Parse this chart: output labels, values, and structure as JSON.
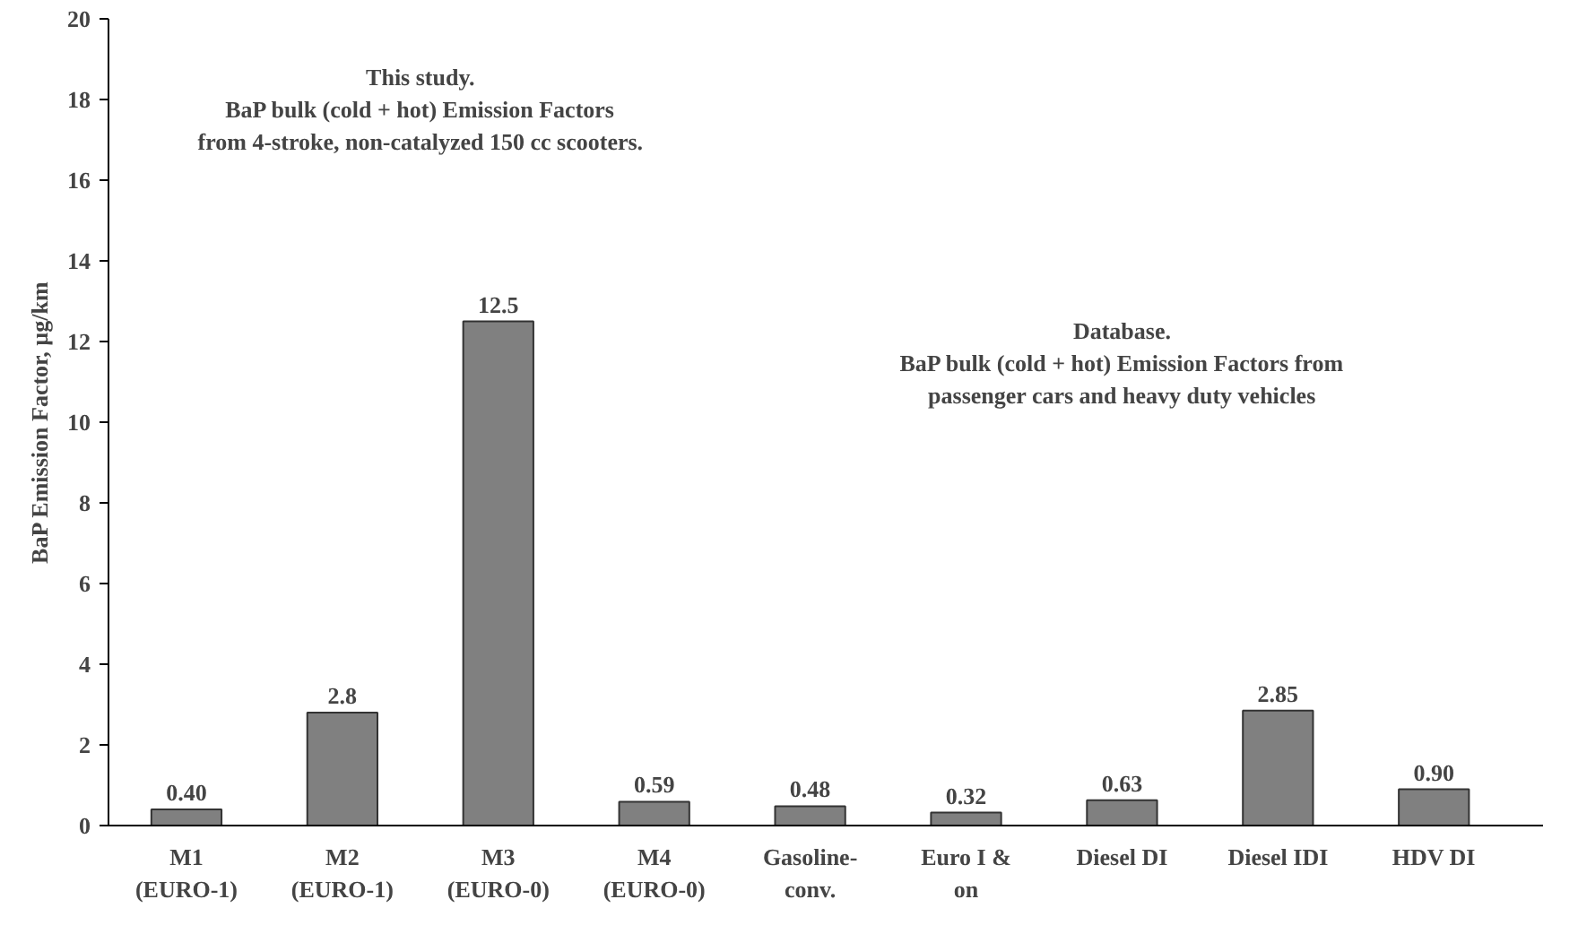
{
  "chart_data": {
    "type": "bar",
    "ylabel": "BaP Emission Factor, µg/km",
    "categories": [
      "M1\n(EURO-1)",
      "M2\n(EURO-1)",
      "M3\n(EURO-0)",
      "M4\n(EURO-0)",
      "Gasoline-\nconv.",
      "Euro I &\non",
      "Diesel DI",
      "Diesel IDI",
      "HDV DI"
    ],
    "values": [
      0.4,
      2.8,
      12.5,
      0.59,
      0.48,
      0.32,
      0.63,
      2.85,
      0.9
    ],
    "value_labels": [
      "0.40",
      "2.8",
      "12.5",
      "0.59",
      "0.48",
      "0.32",
      "0.63",
      "2.85",
      "0.90"
    ],
    "color": "#808080",
    "ylim": [
      0,
      20
    ],
    "yticks": [
      0,
      2,
      4,
      6,
      8,
      10,
      12,
      14,
      16,
      18,
      20
    ],
    "grid": false,
    "annotations": [
      "This study.\nBaP bulk (cold + hot) Emission Factors\nfrom 4-stroke, non-catalyzed 150 cc scooters.",
      "Database.\nBaP bulk (cold + hot) Emission Factors from\npassenger cars and heavy duty vehicles"
    ]
  }
}
